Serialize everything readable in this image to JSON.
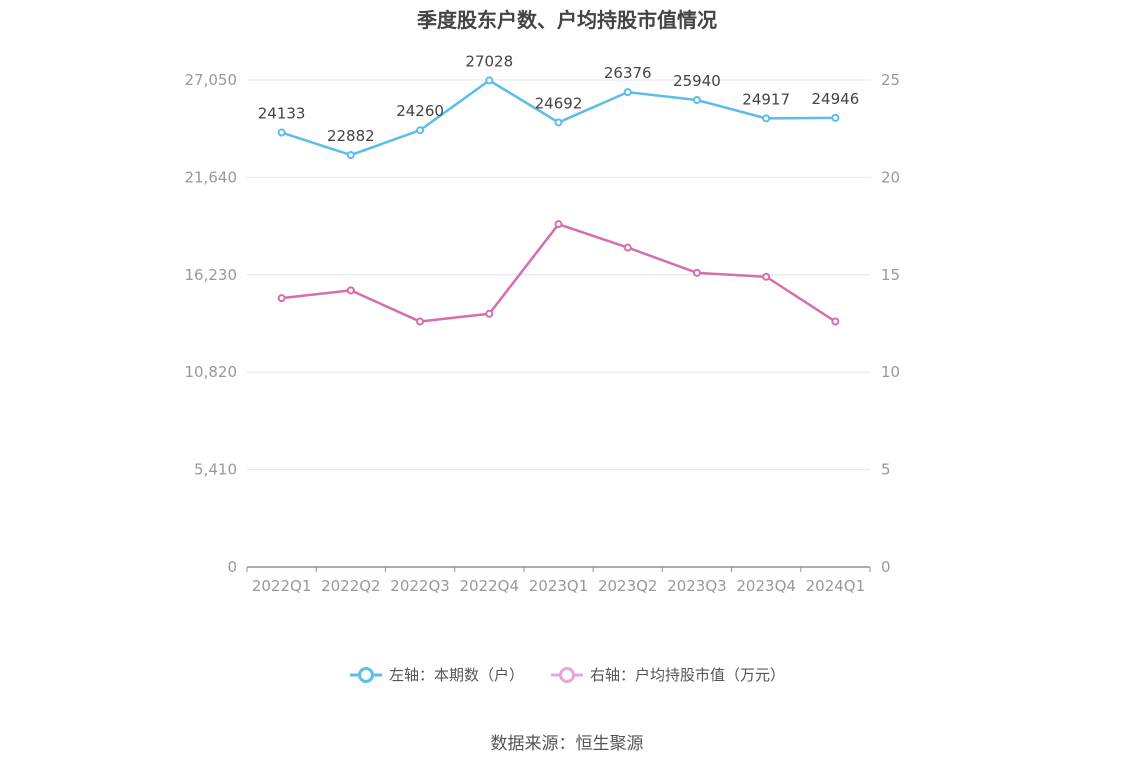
{
  "chart_data": {
    "type": "line",
    "title": "季度股东户数、户均持股市值情况",
    "categories": [
      "2022Q1",
      "2022Q2",
      "2022Q3",
      "2022Q4",
      "2023Q1",
      "2023Q2",
      "2023Q3",
      "2023Q4",
      "2024Q1"
    ],
    "series": [
      {
        "name": "左轴：本期数（户）",
        "axis": "left",
        "color": "#5bbdec",
        "values": [
          24133,
          22882,
          24260,
          27028,
          24692,
          26376,
          25940,
          24917,
          24946
        ],
        "show_labels": true
      },
      {
        "name": "右轴：户均持股市值（万元）",
        "axis": "right",
        "color": "#d46eae",
        "legend_color": "#eaa4cf",
        "values": [
          13.8,
          14.2,
          12.6,
          13.0,
          17.6,
          16.4,
          15.1,
          14.9,
          12.6
        ],
        "show_labels": false
      }
    ],
    "y_left": {
      "min": 0,
      "max": 27050,
      "ticks": [
        0,
        5410,
        10820,
        16230,
        21640,
        27050
      ],
      "tick_labels": [
        "0",
        "5,410",
        "10,820",
        "16,230",
        "21,640",
        "27,050"
      ]
    },
    "y_right": {
      "min": 0,
      "max": 25,
      "ticks": [
        0,
        5,
        10,
        15,
        20,
        25
      ],
      "tick_labels": [
        "0",
        "5",
        "10",
        "15",
        "20",
        "25"
      ]
    },
    "grid": true,
    "legend_position": "bottom"
  },
  "source": "数据来源：恒生聚源"
}
